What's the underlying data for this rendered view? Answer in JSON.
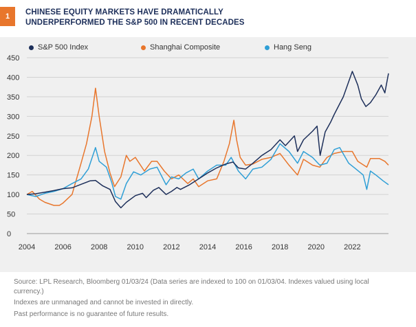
{
  "figure": {
    "badge": "1",
    "title": "CHINESE EQUITY MARKETS HAVE DRAMATICALLY UNDERPERFORMED THE S&P 500 IN RECENT DECADES"
  },
  "source": {
    "line1": "Source: LPL Research, Bloomberg  01/03/24  (Data series are indexed to 100 on 01/03/04. Indexes valued using local currency.)",
    "line2": "Indexes are unmanaged and cannot be invested in directly.",
    "line3": "Past performance is no guarantee of future results."
  },
  "chart_data": {
    "type": "line",
    "xlim": [
      2004,
      2024
    ],
    "ylim": [
      0,
      450
    ],
    "x_ticks": [
      2004,
      2006,
      2008,
      2010,
      2012,
      2014,
      2016,
      2018,
      2020,
      2022
    ],
    "y_ticks": [
      0,
      50,
      100,
      150,
      200,
      250,
      300,
      350,
      400,
      450
    ],
    "grid": "horizontal",
    "legend_position": "top",
    "series": [
      {
        "name": "S&P 500 Index",
        "color": "#1d2f5a",
        "points": [
          [
            2004.0,
            100
          ],
          [
            2004.5,
            102
          ],
          [
            2005.0,
            106
          ],
          [
            2005.5,
            110
          ],
          [
            2006.0,
            115
          ],
          [
            2006.5,
            117
          ],
          [
            2007.0,
            126
          ],
          [
            2007.5,
            135
          ],
          [
            2007.8,
            136
          ],
          [
            2008.2,
            122
          ],
          [
            2008.6,
            113
          ],
          [
            2008.9,
            82
          ],
          [
            2009.2,
            66
          ],
          [
            2009.5,
            80
          ],
          [
            2010.0,
            97
          ],
          [
            2010.4,
            103
          ],
          [
            2010.6,
            92
          ],
          [
            2011.0,
            111
          ],
          [
            2011.3,
            118
          ],
          [
            2011.7,
            100
          ],
          [
            2012.0,
            108
          ],
          [
            2012.3,
            118
          ],
          [
            2012.5,
            113
          ],
          [
            2013.0,
            125
          ],
          [
            2013.5,
            140
          ],
          [
            2014.0,
            155
          ],
          [
            2014.5,
            168
          ],
          [
            2015.0,
            178
          ],
          [
            2015.4,
            183
          ],
          [
            2015.7,
            168
          ],
          [
            2016.1,
            165
          ],
          [
            2016.5,
            180
          ],
          [
            2017.0,
            200
          ],
          [
            2017.5,
            215
          ],
          [
            2018.0,
            240
          ],
          [
            2018.3,
            225
          ],
          [
            2018.8,
            250
          ],
          [
            2018.97,
            210
          ],
          [
            2019.3,
            240
          ],
          [
            2019.8,
            262
          ],
          [
            2020.05,
            275
          ],
          [
            2020.22,
            200
          ],
          [
            2020.5,
            260
          ],
          [
            2020.8,
            285
          ],
          [
            2021.0,
            305
          ],
          [
            2021.5,
            350
          ],
          [
            2022.0,
            415
          ],
          [
            2022.3,
            380
          ],
          [
            2022.5,
            345
          ],
          [
            2022.75,
            325
          ],
          [
            2023.0,
            335
          ],
          [
            2023.3,
            355
          ],
          [
            2023.6,
            380
          ],
          [
            2023.8,
            360
          ],
          [
            2024.0,
            410
          ]
        ]
      },
      {
        "name": "Shanghai Composite",
        "color": "#e8762c",
        "points": [
          [
            2004.0,
            100
          ],
          [
            2004.3,
            108
          ],
          [
            2004.7,
            88
          ],
          [
            2005.0,
            80
          ],
          [
            2005.5,
            72
          ],
          [
            2005.8,
            72
          ],
          [
            2006.0,
            78
          ],
          [
            2006.5,
            100
          ],
          [
            2007.0,
            180
          ],
          [
            2007.3,
            230
          ],
          [
            2007.6,
            300
          ],
          [
            2007.8,
            372
          ],
          [
            2008.0,
            300
          ],
          [
            2008.3,
            210
          ],
          [
            2008.6,
            155
          ],
          [
            2008.85,
            120
          ],
          [
            2009.2,
            145
          ],
          [
            2009.5,
            200
          ],
          [
            2009.7,
            185
          ],
          [
            2010.0,
            195
          ],
          [
            2010.5,
            160
          ],
          [
            2010.9,
            185
          ],
          [
            2011.2,
            185
          ],
          [
            2011.6,
            160
          ],
          [
            2012.0,
            140
          ],
          [
            2012.4,
            150
          ],
          [
            2012.9,
            128
          ],
          [
            2013.2,
            140
          ],
          [
            2013.5,
            120
          ],
          [
            2014.0,
            135
          ],
          [
            2014.5,
            140
          ],
          [
            2014.9,
            185
          ],
          [
            2015.2,
            230
          ],
          [
            2015.45,
            290
          ],
          [
            2015.6,
            240
          ],
          [
            2015.8,
            195
          ],
          [
            2016.1,
            175
          ],
          [
            2016.5,
            178
          ],
          [
            2017.0,
            190
          ],
          [
            2017.5,
            195
          ],
          [
            2018.0,
            205
          ],
          [
            2018.5,
            175
          ],
          [
            2018.97,
            150
          ],
          [
            2019.3,
            190
          ],
          [
            2019.8,
            175
          ],
          [
            2020.2,
            170
          ],
          [
            2020.6,
            195
          ],
          [
            2021.0,
            205
          ],
          [
            2021.5,
            210
          ],
          [
            2022.0,
            210
          ],
          [
            2022.3,
            185
          ],
          [
            2022.8,
            170
          ],
          [
            2023.0,
            192
          ],
          [
            2023.5,
            192
          ],
          [
            2023.8,
            185
          ],
          [
            2024.0,
            175
          ]
        ]
      },
      {
        "name": "Hang Seng",
        "color": "#2f9fd6",
        "points": [
          [
            2004.0,
            100
          ],
          [
            2004.5,
            95
          ],
          [
            2005.0,
            103
          ],
          [
            2005.5,
            108
          ],
          [
            2006.0,
            115
          ],
          [
            2006.5,
            128
          ],
          [
            2007.0,
            140
          ],
          [
            2007.4,
            165
          ],
          [
            2007.8,
            220
          ],
          [
            2008.0,
            185
          ],
          [
            2008.4,
            170
          ],
          [
            2008.7,
            130
          ],
          [
            2008.9,
            95
          ],
          [
            2009.2,
            88
          ],
          [
            2009.5,
            128
          ],
          [
            2009.9,
            158
          ],
          [
            2010.3,
            150
          ],
          [
            2010.8,
            165
          ],
          [
            2011.2,
            170
          ],
          [
            2011.7,
            125
          ],
          [
            2012.0,
            145
          ],
          [
            2012.4,
            140
          ],
          [
            2012.8,
            155
          ],
          [
            2013.2,
            165
          ],
          [
            2013.5,
            140
          ],
          [
            2014.0,
            160
          ],
          [
            2014.5,
            175
          ],
          [
            2015.0,
            175
          ],
          [
            2015.3,
            195
          ],
          [
            2015.7,
            160
          ],
          [
            2016.1,
            140
          ],
          [
            2016.5,
            165
          ],
          [
            2017.0,
            170
          ],
          [
            2017.5,
            190
          ],
          [
            2018.0,
            230
          ],
          [
            2018.5,
            210
          ],
          [
            2018.97,
            180
          ],
          [
            2019.3,
            210
          ],
          [
            2019.8,
            195
          ],
          [
            2020.2,
            175
          ],
          [
            2020.6,
            180
          ],
          [
            2021.0,
            215
          ],
          [
            2021.3,
            220
          ],
          [
            2021.8,
            180
          ],
          [
            2022.2,
            165
          ],
          [
            2022.6,
            150
          ],
          [
            2022.8,
            113
          ],
          [
            2023.0,
            160
          ],
          [
            2023.3,
            150
          ],
          [
            2023.7,
            135
          ],
          [
            2024.0,
            125
          ]
        ]
      }
    ]
  }
}
